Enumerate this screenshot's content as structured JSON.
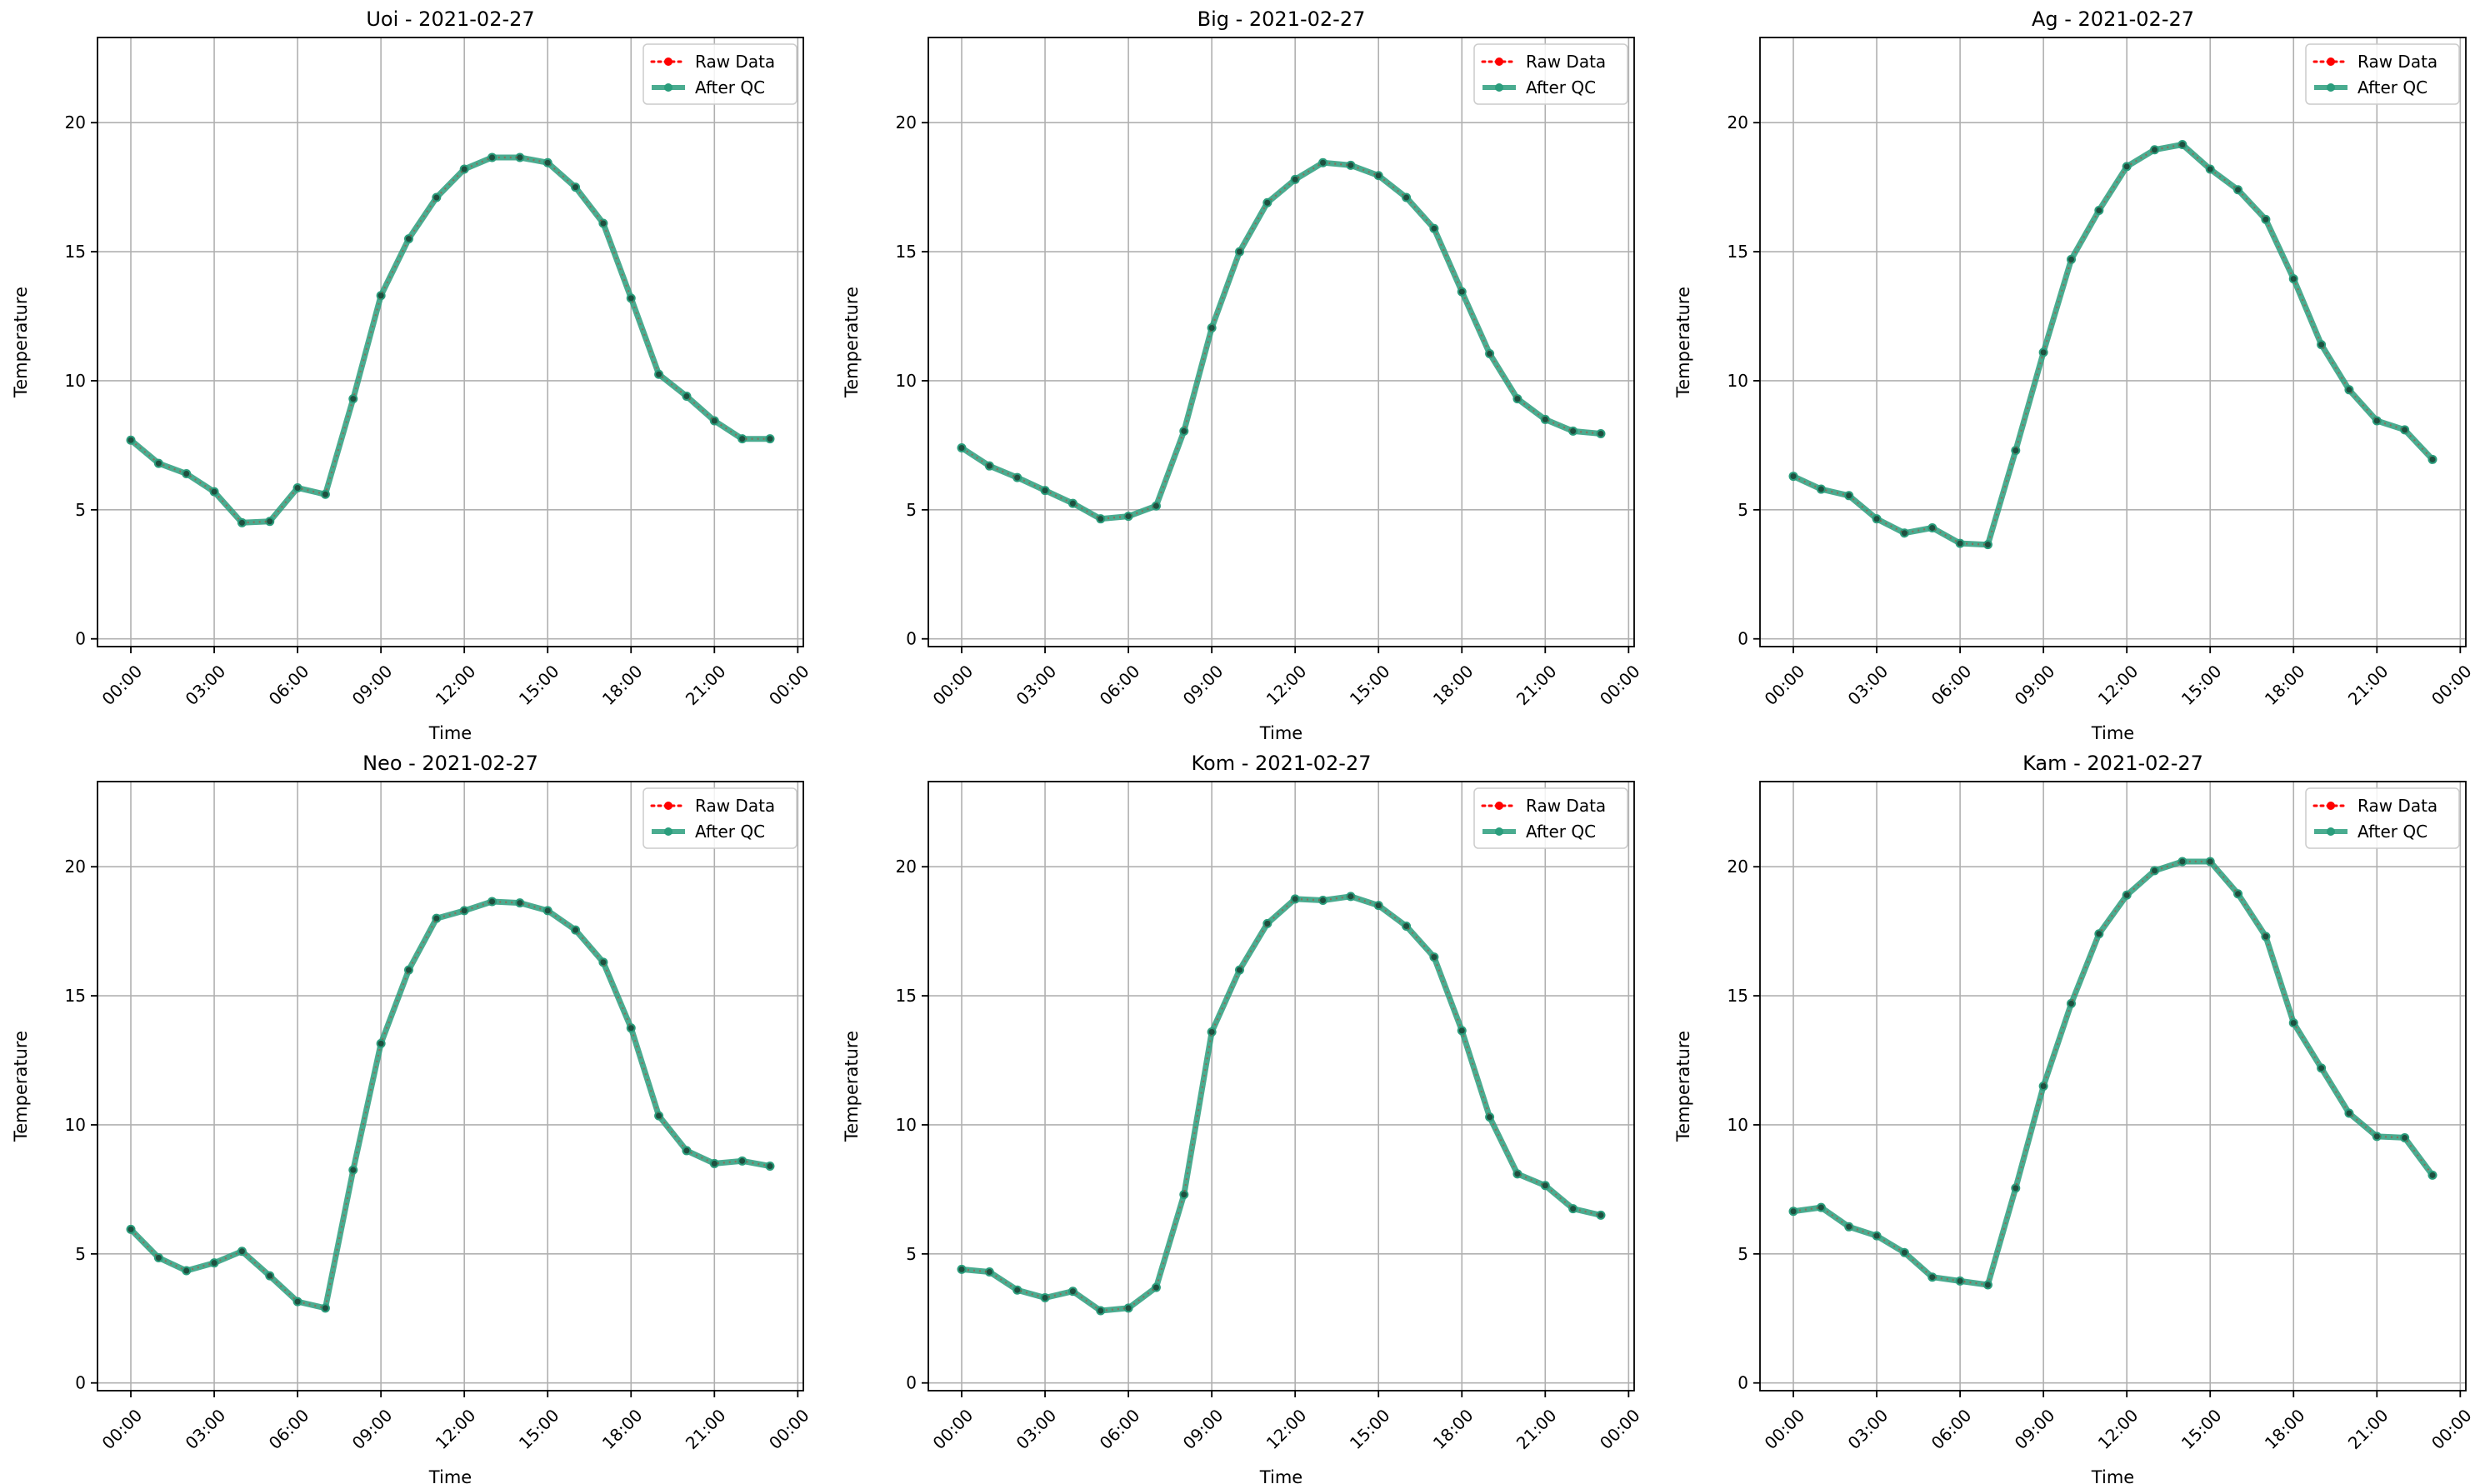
{
  "figure": {
    "colors": {
      "raw": "#ff0000",
      "after_qc": "#2a9d7c",
      "grid": "#b0b0b0",
      "axes": "#000000"
    }
  },
  "chart_data": [
    {
      "type": "line",
      "title": "Uoi - 2021-02-27",
      "xlabel": "Time",
      "ylabel": "Temperature",
      "xticks": [
        "00:00",
        "03:00",
        "06:00",
        "09:00",
        "12:00",
        "15:00",
        "18:00",
        "21:00",
        "00:00"
      ],
      "yticks": [
        0,
        5,
        10,
        15,
        20
      ],
      "xlim_hours": [
        -1.2,
        24.2
      ],
      "ylim": [
        -0.3,
        23.3
      ],
      "grid": true,
      "legend": "top-right",
      "x_hours": [
        0,
        1,
        2,
        3,
        4,
        5,
        6,
        7,
        8,
        9,
        10,
        11,
        12,
        13,
        14,
        15,
        16,
        17,
        18,
        19,
        20,
        21,
        22,
        23
      ],
      "series": [
        {
          "name": "Raw Data",
          "style": "dotted",
          "values": [
            7.7,
            6.8,
            6.4,
            5.7,
            4.5,
            4.55,
            5.85,
            5.6,
            9.3,
            13.3,
            15.5,
            17.1,
            18.2,
            18.65,
            18.65,
            18.45,
            17.5,
            16.1,
            13.2,
            10.25,
            9.4,
            8.45,
            7.75,
            7.75
          ]
        },
        {
          "name": "After QC",
          "style": "solid",
          "values": [
            7.7,
            6.8,
            6.4,
            5.7,
            4.5,
            4.55,
            5.85,
            5.6,
            9.3,
            13.3,
            15.5,
            17.1,
            18.2,
            18.65,
            18.65,
            18.45,
            17.5,
            16.1,
            13.2,
            10.25,
            9.4,
            8.45,
            7.75,
            7.75
          ]
        }
      ]
    },
    {
      "type": "line",
      "title": "Big - 2021-02-27",
      "xlabel": "Time",
      "ylabel": "Temperature",
      "xticks": [
        "00:00",
        "03:00",
        "06:00",
        "09:00",
        "12:00",
        "15:00",
        "18:00",
        "21:00",
        "00:00"
      ],
      "yticks": [
        0,
        5,
        10,
        15,
        20
      ],
      "xlim_hours": [
        -1.2,
        24.2
      ],
      "ylim": [
        -0.3,
        23.3
      ],
      "grid": true,
      "legend": "top-right",
      "x_hours": [
        0,
        1,
        2,
        3,
        4,
        5,
        6,
        7,
        8,
        9,
        10,
        11,
        12,
        13,
        14,
        15,
        16,
        17,
        18,
        19,
        20,
        21,
        22,
        23
      ],
      "series": [
        {
          "name": "Raw Data",
          "style": "dotted",
          "values": [
            7.4,
            6.7,
            6.25,
            5.75,
            5.25,
            4.65,
            4.75,
            5.15,
            8.05,
            12.05,
            15.0,
            16.9,
            17.8,
            18.45,
            18.35,
            17.95,
            17.1,
            15.9,
            13.45,
            11.05,
            9.3,
            8.5,
            8.05,
            7.95
          ]
        },
        {
          "name": "After QC",
          "style": "solid",
          "values": [
            7.4,
            6.7,
            6.25,
            5.75,
            5.25,
            4.65,
            4.75,
            5.15,
            8.05,
            12.05,
            15.0,
            16.9,
            17.8,
            18.45,
            18.35,
            17.95,
            17.1,
            15.9,
            13.45,
            11.05,
            9.3,
            8.5,
            8.05,
            7.95
          ]
        }
      ]
    },
    {
      "type": "line",
      "title": "Ag - 2021-02-27",
      "xlabel": "Time",
      "ylabel": "Temperature",
      "xticks": [
        "00:00",
        "03:00",
        "06:00",
        "09:00",
        "12:00",
        "15:00",
        "18:00",
        "21:00",
        "00:00"
      ],
      "yticks": [
        0,
        5,
        10,
        15,
        20
      ],
      "xlim_hours": [
        -1.2,
        24.2
      ],
      "ylim": [
        -0.3,
        23.3
      ],
      "grid": true,
      "legend": "top-right",
      "x_hours": [
        0,
        1,
        2,
        3,
        4,
        5,
        6,
        7,
        8,
        9,
        10,
        11,
        12,
        13,
        14,
        15,
        16,
        17,
        18,
        19,
        20,
        21,
        22,
        23
      ],
      "series": [
        {
          "name": "Raw Data",
          "style": "dotted",
          "values": [
            6.3,
            5.8,
            5.55,
            4.65,
            4.1,
            4.3,
            3.7,
            3.65,
            7.3,
            11.1,
            14.7,
            16.6,
            18.3,
            18.95,
            19.15,
            18.2,
            17.4,
            16.25,
            13.95,
            11.4,
            9.65,
            8.45,
            8.1,
            6.95
          ]
        },
        {
          "name": "After QC",
          "style": "solid",
          "values": [
            6.3,
            5.8,
            5.55,
            4.65,
            4.1,
            4.3,
            3.7,
            3.65,
            7.3,
            11.1,
            14.7,
            16.6,
            18.3,
            18.95,
            19.15,
            18.2,
            17.4,
            16.25,
            13.95,
            11.4,
            9.65,
            8.45,
            8.1,
            6.95
          ]
        }
      ]
    },
    {
      "type": "line",
      "title": "Neo - 2021-02-27",
      "xlabel": "Time",
      "ylabel": "Temperature",
      "xticks": [
        "00:00",
        "03:00",
        "06:00",
        "09:00",
        "12:00",
        "15:00",
        "18:00",
        "21:00",
        "00:00"
      ],
      "yticks": [
        0,
        5,
        10,
        15,
        20
      ],
      "xlim_hours": [
        -1.2,
        24.2
      ],
      "ylim": [
        -0.3,
        23.3
      ],
      "grid": true,
      "legend": "top-right",
      "x_hours": [
        0,
        1,
        2,
        3,
        4,
        5,
        6,
        7,
        8,
        9,
        10,
        11,
        12,
        13,
        14,
        15,
        16,
        17,
        18,
        19,
        20,
        21,
        22,
        23
      ],
      "series": [
        {
          "name": "Raw Data",
          "style": "dotted",
          "values": [
            5.95,
            4.85,
            4.35,
            4.65,
            5.1,
            4.15,
            3.15,
            2.9,
            8.25,
            13.15,
            16.0,
            18.0,
            18.3,
            18.65,
            18.6,
            18.3,
            17.55,
            16.3,
            13.75,
            10.35,
            9.0,
            8.5,
            8.6,
            8.4
          ]
        },
        {
          "name": "After QC",
          "style": "solid",
          "values": [
            5.95,
            4.85,
            4.35,
            4.65,
            5.1,
            4.15,
            3.15,
            2.9,
            8.25,
            13.15,
            16.0,
            18.0,
            18.3,
            18.65,
            18.6,
            18.3,
            17.55,
            16.3,
            13.75,
            10.35,
            9.0,
            8.5,
            8.6,
            8.4
          ]
        }
      ]
    },
    {
      "type": "line",
      "title": "Kom - 2021-02-27",
      "xlabel": "Time",
      "ylabel": "Temperature",
      "xticks": [
        "00:00",
        "03:00",
        "06:00",
        "09:00",
        "12:00",
        "15:00",
        "18:00",
        "21:00",
        "00:00"
      ],
      "yticks": [
        0,
        5,
        10,
        15,
        20
      ],
      "xlim_hours": [
        -1.2,
        24.2
      ],
      "ylim": [
        -0.3,
        23.3
      ],
      "grid": true,
      "legend": "top-right",
      "x_hours": [
        0,
        1,
        2,
        3,
        4,
        5,
        6,
        7,
        8,
        9,
        10,
        11,
        12,
        13,
        14,
        15,
        16,
        17,
        18,
        19,
        20,
        21,
        22,
        23
      ],
      "series": [
        {
          "name": "Raw Data",
          "style": "dotted",
          "values": [
            4.4,
            4.3,
            3.6,
            3.3,
            3.55,
            2.8,
            2.9,
            3.7,
            7.3,
            13.6,
            16.0,
            17.8,
            18.75,
            18.7,
            18.85,
            18.5,
            17.7,
            16.5,
            13.65,
            10.3,
            8.1,
            7.65,
            6.75,
            6.5
          ]
        },
        {
          "name": "After QC",
          "style": "solid",
          "values": [
            4.4,
            4.3,
            3.6,
            3.3,
            3.55,
            2.8,
            2.9,
            3.7,
            7.3,
            13.6,
            16.0,
            17.8,
            18.75,
            18.7,
            18.85,
            18.5,
            17.7,
            16.5,
            13.65,
            10.3,
            8.1,
            7.65,
            6.75,
            6.5
          ]
        }
      ]
    },
    {
      "type": "line",
      "title": "Kam - 2021-02-27",
      "xlabel": "Time",
      "ylabel": "Temperature",
      "xticks": [
        "00:00",
        "03:00",
        "06:00",
        "09:00",
        "12:00",
        "15:00",
        "18:00",
        "21:00",
        "00:00"
      ],
      "yticks": [
        0,
        5,
        10,
        15,
        20
      ],
      "xlim_hours": [
        -1.2,
        24.2
      ],
      "ylim": [
        -0.3,
        23.3
      ],
      "grid": true,
      "legend": "top-right",
      "x_hours": [
        0,
        1,
        2,
        3,
        4,
        5,
        6,
        7,
        8,
        9,
        10,
        11,
        12,
        13,
        14,
        15,
        16,
        17,
        18,
        19,
        20,
        21,
        22,
        23
      ],
      "series": [
        {
          "name": "Raw Data",
          "style": "dotted",
          "values": [
            6.65,
            6.8,
            6.05,
            5.7,
            5.05,
            4.1,
            3.95,
            3.8,
            7.55,
            11.5,
            14.7,
            17.4,
            18.9,
            19.85,
            20.2,
            20.2,
            18.95,
            17.3,
            13.95,
            12.2,
            10.45,
            9.55,
            9.5,
            8.05
          ]
        },
        {
          "name": "After QC",
          "style": "solid",
          "values": [
            6.65,
            6.8,
            6.05,
            5.7,
            5.05,
            4.1,
            3.95,
            3.8,
            7.55,
            11.5,
            14.7,
            17.4,
            18.9,
            19.85,
            20.2,
            20.2,
            18.95,
            17.3,
            13.95,
            12.2,
            10.45,
            9.55,
            9.5,
            8.05
          ]
        }
      ]
    }
  ]
}
